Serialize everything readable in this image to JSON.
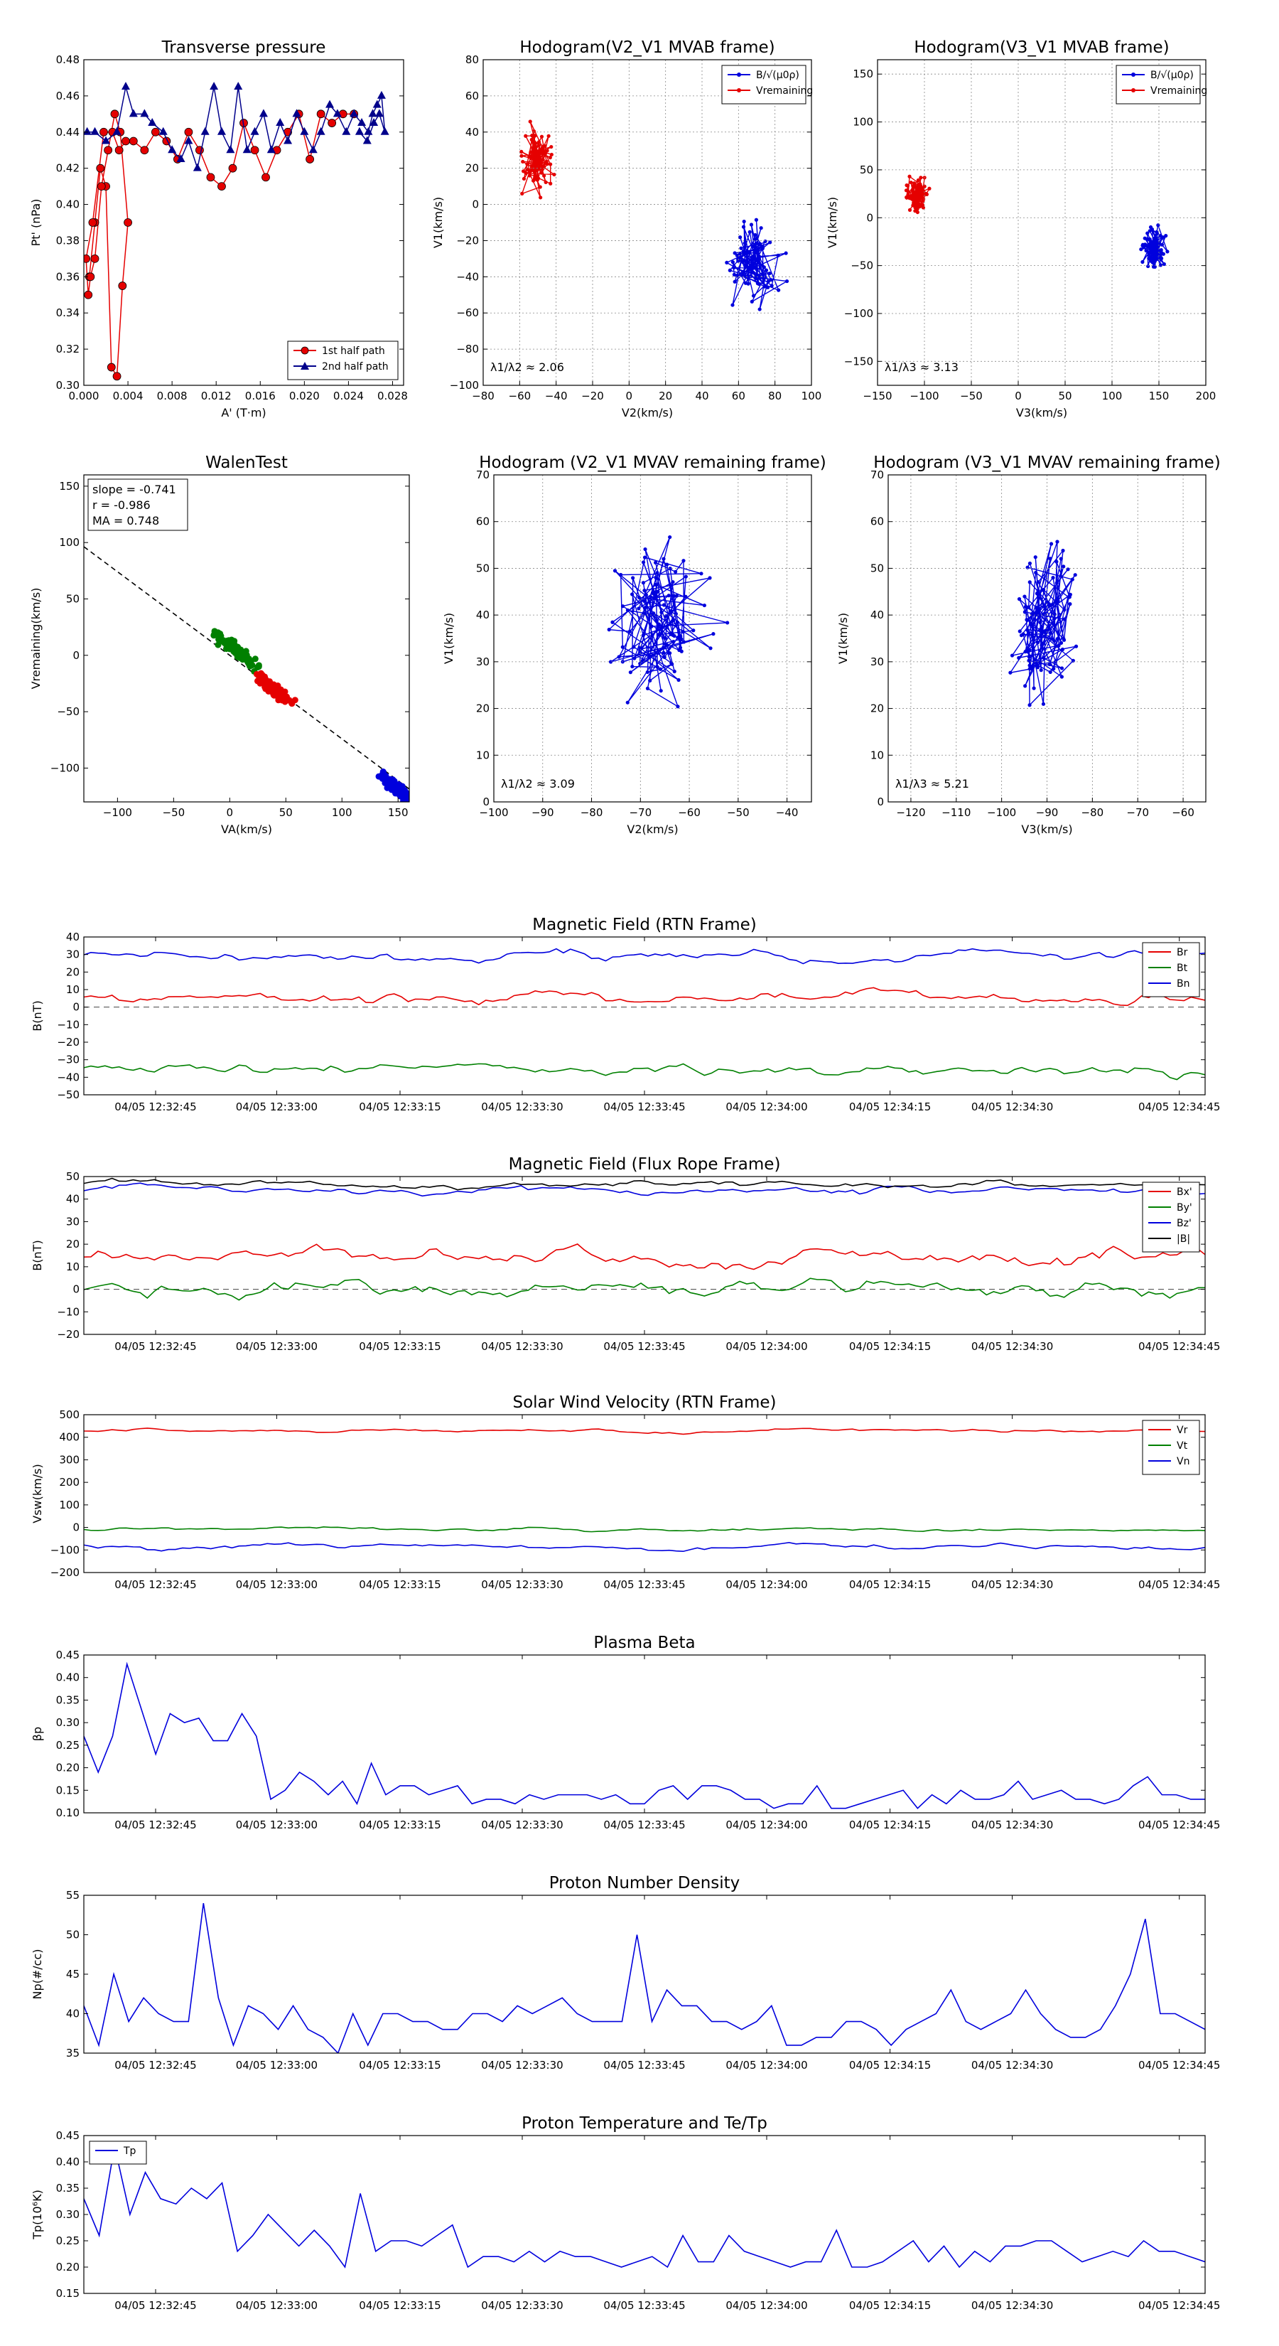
{
  "colors": {
    "red": "#e50000",
    "green": "#008000",
    "blue": "#0000dd",
    "black": "#000000",
    "navy": "#00008b",
    "grid": "#888888"
  },
  "chart_data": [
    {
      "id": "tp",
      "type": "scatter",
      "title": "Transverse pressure",
      "xlabel": "A' (T·m)",
      "ylabel": "Pt' (nPa)",
      "xlim": [
        0,
        0.029
      ],
      "ylim": [
        0.3,
        0.48
      ],
      "xticks": [
        "0.000",
        "0.004",
        "0.008",
        "0.012",
        "0.016",
        "0.020",
        "0.024",
        "0.028"
      ],
      "yticks": [
        "0.30",
        "0.32",
        "0.34",
        "0.36",
        "0.38",
        "0.40",
        "0.42",
        "0.44",
        "0.46",
        "0.48"
      ],
      "legend": [
        "1st half path",
        "2nd half path"
      ],
      "legend_loc": "lower-right",
      "series": [
        {
          "name": "1st half path",
          "x": [
            0.0005,
            0.001,
            0.0015,
            0.002,
            0.0025,
            0.003,
            0.0035,
            0.004,
            0.0033,
            0.0028,
            0.0022,
            0.0016,
            0.001,
            0.0006,
            0.0004,
            0.0002,
            0.0008,
            0.0018,
            0.0026,
            0.0032,
            0.0038,
            0.0045,
            0.0055,
            0.0065,
            0.0075,
            0.0085,
            0.0095,
            0.0105,
            0.0115,
            0.0125,
            0.0135,
            0.0145,
            0.0155,
            0.0165,
            0.0175,
            0.0185,
            0.0195,
            0.0205,
            0.0215,
            0.0225,
            0.0235,
            0.0245
          ],
          "y": [
            0.36,
            0.39,
            0.42,
            0.41,
            0.31,
            0.305,
            0.355,
            0.39,
            0.44,
            0.45,
            0.43,
            0.41,
            0.37,
            0.36,
            0.35,
            0.37,
            0.39,
            0.44,
            0.44,
            0.43,
            0.435,
            0.435,
            0.43,
            0.44,
            0.435,
            0.425,
            0.44,
            0.43,
            0.415,
            0.41,
            0.42,
            0.445,
            0.43,
            0.415,
            0.43,
            0.44,
            0.45,
            0.425,
            0.45,
            0.445,
            0.45,
            0.45
          ]
        },
        {
          "name": "2nd half path",
          "x": [
            0.0003,
            0.001,
            0.002,
            0.003,
            0.0038,
            0.0045,
            0.0055,
            0.0062,
            0.0072,
            0.008,
            0.0088,
            0.0095,
            0.0103,
            0.011,
            0.0118,
            0.0125,
            0.0133,
            0.014,
            0.0148,
            0.0155,
            0.0163,
            0.017,
            0.0178,
            0.0185,
            0.0193,
            0.02,
            0.0208,
            0.0215,
            0.0223,
            0.023,
            0.0238,
            0.0245,
            0.0252,
            0.0258,
            0.0262,
            0.0266,
            0.027,
            0.0273,
            0.0268,
            0.0263,
            0.0257,
            0.025
          ],
          "y": [
            0.44,
            0.44,
            0.435,
            0.44,
            0.465,
            0.45,
            0.45,
            0.445,
            0.44,
            0.43,
            0.425,
            0.435,
            0.42,
            0.44,
            0.465,
            0.44,
            0.43,
            0.465,
            0.43,
            0.44,
            0.45,
            0.43,
            0.445,
            0.435,
            0.45,
            0.44,
            0.43,
            0.44,
            0.455,
            0.45,
            0.44,
            0.45,
            0.445,
            0.44,
            0.45,
            0.455,
            0.46,
            0.44,
            0.45,
            0.445,
            0.435,
            0.44
          ]
        }
      ]
    },
    {
      "id": "h1",
      "type": "line",
      "title": "Hodogram(V2_V1 MVAB frame)",
      "xlabel": "V2(km/s)",
      "ylabel": "V1(km/s)",
      "xlim": [
        -80,
        100
      ],
      "ylim": [
        -100,
        80
      ],
      "xticks": [
        "−80",
        "−60",
        "−40",
        "−20",
        "0",
        "20",
        "40",
        "60",
        "80",
        "100"
      ],
      "yticks": [
        "−100",
        "−80",
        "−60",
        "−40",
        "−20",
        "0",
        "20",
        "40",
        "60",
        "80"
      ],
      "legend": [
        "B/√(μ0ρ)",
        "Vremaining"
      ],
      "legend_loc": "top-right",
      "annotation": "λ1/λ2 ≈ 2.06",
      "series": [
        {
          "name": "B/√(μ0ρ)",
          "cx": 68,
          "cy": -33,
          "sx": 10,
          "sy": 15,
          "n": 90,
          "seed": 11
        },
        {
          "name": "Vremaining",
          "cx": -50,
          "cy": 25,
          "sx": 6,
          "sy": 12,
          "n": 90,
          "seed": 23
        }
      ]
    },
    {
      "id": "h2",
      "type": "line",
      "title": "Hodogram(V3_V1 MVAB frame)",
      "xlabel": "V3(km/s)",
      "ylabel": "V1(km/s)",
      "xlim": [
        -150,
        200
      ],
      "ylim": [
        -175,
        165
      ],
      "xticks": [
        "−150",
        "−100",
        "−50",
        "0",
        "50",
        "100",
        "150",
        "200"
      ],
      "yticks": [
        "−150",
        "−100",
        "−50",
        "0",
        "50",
        "100",
        "150"
      ],
      "legend": [
        "B/√(μ0ρ)",
        "Vremaining"
      ],
      "legend_loc": "top-right",
      "annotation": "λ1/λ3 ≈ 3.13",
      "series": [
        {
          "name": "B/√(μ0ρ)",
          "cx": 145,
          "cy": -32,
          "sx": 9,
          "sy": 14,
          "n": 90,
          "seed": 37
        },
        {
          "name": "Vremaining",
          "cx": -108,
          "cy": 22,
          "sx": 7,
          "sy": 12,
          "n": 90,
          "seed": 41
        }
      ]
    },
    {
      "id": "walen",
      "type": "scatter",
      "title": "WalenTest",
      "xlabel": "VA(km/s)",
      "ylabel": "Vremaining(km/s)",
      "xlim": [
        -130,
        160
      ],
      "ylim": [
        -130,
        160
      ],
      "xticks": [
        "−100",
        "−50",
        "0",
        "50",
        "100",
        "150"
      ],
      "yticks": [
        "−100",
        "−50",
        "0",
        "50",
        "100",
        "150"
      ],
      "slope": -0.741,
      "intercept": 0,
      "stats": [
        "slope = -0.741",
        "r = -0.986",
        "MA = 0.748"
      ],
      "series": [
        {
          "name": "green",
          "cx": 5,
          "cy": 5,
          "sx": 14,
          "sy": 10,
          "n": 110,
          "seed": 5
        },
        {
          "name": "red",
          "cx": 40,
          "cy": -30,
          "sx": 10,
          "sy": 8,
          "n": 90,
          "seed": 7
        },
        {
          "name": "blue",
          "cx": 148,
          "cy": -117,
          "sx": 10,
          "sy": 6,
          "n": 110,
          "seed": 9
        }
      ]
    },
    {
      "id": "h3",
      "type": "line",
      "title": "Hodogram (V2_V1 MVAV remaining frame)",
      "xlabel": "V2(km/s)",
      "ylabel": "V1(km/s)",
      "xlim": [
        -100,
        -35
      ],
      "ylim": [
        0,
        70
      ],
      "xticks": [
        "−100",
        "−90",
        "−80",
        "−70",
        "−60",
        "−50",
        "−40"
      ],
      "yticks": [
        "0",
        "10",
        "20",
        "30",
        "40",
        "50",
        "60",
        "70"
      ],
      "annotation": "λ1/λ2 ≈ 3.09",
      "series": [
        {
          "name": "V",
          "cx": -66,
          "cy": 38,
          "sx": 7,
          "sy": 11,
          "n": 110,
          "seed": 61
        }
      ]
    },
    {
      "id": "h4",
      "type": "line",
      "title": "Hodogram (V3_V1 MVAV remaining frame)",
      "xlabel": "V3(km/s)",
      "ylabel": "V1(km/s)",
      "xlim": [
        -125,
        -55
      ],
      "ylim": [
        0,
        70
      ],
      "xticks": [
        "−120",
        "−110",
        "−100",
        "−90",
        "−80",
        "−70",
        "−60"
      ],
      "yticks": [
        "0",
        "10",
        "20",
        "30",
        "40",
        "50",
        "60",
        "70"
      ],
      "annotation": "λ1/λ3 ≈ 5.21",
      "series": [
        {
          "name": "V",
          "cx": -91,
          "cy": 38,
          "sx": 5,
          "sy": 11,
          "n": 110,
          "seed": 73
        }
      ]
    },
    {
      "id": "mag_rtn",
      "type": "line",
      "title": "Magnetic Field (RTN Frame)",
      "ylabel": "B(nT)",
      "ylim": [
        -50,
        40
      ],
      "yticks": [
        "−50",
        "−40",
        "−30",
        "−20",
        "−10",
        "0",
        "10",
        "20",
        "30",
        "40"
      ],
      "zero_line": true,
      "legend": [
        "Br",
        "Bt",
        "Bn"
      ],
      "legend_loc": "top-right",
      "series": [
        {
          "name": "Br",
          "base": 6,
          "amp": 3,
          "seed": 101
        },
        {
          "name": "Bt",
          "base": -36,
          "amp": 3,
          "seed": 102
        },
        {
          "name": "Bn",
          "base": 29,
          "amp": 2.5,
          "seed": 103
        }
      ]
    },
    {
      "id": "mag_fr",
      "type": "line",
      "title": "Magnetic Field (Flux Rope Frame)",
      "ylabel": "B(nT)",
      "ylim": [
        -20,
        50
      ],
      "yticks": [
        "−20",
        "−10",
        "0",
        "10",
        "20",
        "30",
        "40",
        "50"
      ],
      "zero_line": true,
      "legend": [
        "Bx'",
        "By'",
        "Bz'",
        "|B|"
      ],
      "legend_loc": "top-right",
      "series": [
        {
          "name": "Bx'",
          "base": 14,
          "amp": 3,
          "seed": 201
        },
        {
          "name": "By'",
          "base": 0,
          "amp": 3.5,
          "seed": 202
        },
        {
          "name": "Bz'",
          "base": 44,
          "amp": 1.5,
          "seed": 203
        },
        {
          "name": "|B|",
          "base": 46.5,
          "amp": 1.2,
          "seed": 204
        }
      ]
    },
    {
      "id": "vsw",
      "type": "line",
      "title": "Solar Wind Velocity (RTN Frame)",
      "ylabel": "Vsw(km/s)",
      "ylim": [
        -200,
        500
      ],
      "yticks": [
        "−200",
        "−100",
        "0",
        "100",
        "200",
        "300",
        "400",
        "500"
      ],
      "legend": [
        "Vr",
        "Vt",
        "Vn"
      ],
      "legend_loc": "top-right",
      "series": [
        {
          "name": "Vr",
          "base": 430,
          "amp": 6,
          "seed": 301
        },
        {
          "name": "Vt",
          "base": -10,
          "amp": 6,
          "seed": 302
        },
        {
          "name": "Vn",
          "base": -85,
          "amp": 10,
          "seed": 303
        }
      ]
    },
    {
      "id": "beta",
      "type": "line",
      "title": "Plasma Beta",
      "ylabel": "βp",
      "ylim": [
        0.1,
        0.45
      ],
      "yticks": [
        "0.10",
        "0.15",
        "0.20",
        "0.25",
        "0.30",
        "0.35",
        "0.40",
        "0.45"
      ],
      "series": [
        {
          "name": "beta",
          "values": [
            0.27,
            0.19,
            0.27,
            0.43,
            0.33,
            0.23,
            0.32,
            0.3,
            0.31,
            0.26,
            0.26,
            0.32,
            0.27,
            0.13,
            0.15,
            0.19,
            0.17,
            0.14,
            0.17,
            0.12,
            0.21,
            0.14,
            0.16,
            0.16,
            0.14,
            0.15,
            0.16,
            0.12,
            0.13,
            0.13,
            0.12,
            0.14,
            0.13,
            0.14,
            0.14,
            0.14,
            0.13,
            0.14,
            0.12,
            0.12,
            0.15,
            0.16,
            0.13,
            0.16,
            0.16,
            0.15,
            0.13,
            0.13,
            0.11,
            0.12,
            0.12,
            0.16,
            0.11,
            0.11,
            0.12,
            0.13,
            0.14,
            0.15,
            0.11,
            0.14,
            0.12,
            0.15,
            0.13,
            0.13,
            0.14,
            0.17,
            0.13,
            0.14,
            0.15,
            0.13,
            0.13,
            0.12,
            0.13,
            0.16,
            0.18,
            0.14,
            0.14,
            0.13,
            0.13
          ]
        }
      ]
    },
    {
      "id": "np",
      "type": "line",
      "title": "Proton Number Density",
      "ylabel": "Np(#/cc)",
      "ylim": [
        35,
        55
      ],
      "yticks": [
        "35",
        "40",
        "45",
        "50",
        "55"
      ],
      "series": [
        {
          "name": "Np",
          "values": [
            41,
            36,
            45,
            39,
            42,
            40,
            39,
            39,
            54,
            42,
            36,
            41,
            40,
            38,
            41,
            38,
            37,
            35,
            40,
            36,
            40,
            40,
            39,
            39,
            38,
            38,
            40,
            40,
            39,
            41,
            40,
            41,
            42,
            40,
            39,
            39,
            39,
            50,
            39,
            43,
            41,
            41,
            39,
            39,
            38,
            39,
            41,
            36,
            36,
            37,
            37,
            39,
            39,
            38,
            36,
            38,
            39,
            40,
            43,
            39,
            38,
            39,
            40,
            43,
            40,
            38,
            37,
            37,
            38,
            41,
            45,
            52,
            40,
            40,
            39,
            38
          ]
        }
      ]
    },
    {
      "id": "tp2",
      "type": "line",
      "title": "Proton Temperature and Te/Tp",
      "ylabel": "Tp(10⁶K)",
      "ylim": [
        0.15,
        0.45
      ],
      "yticks": [
        "0.15",
        "0.20",
        "0.25",
        "0.30",
        "0.35",
        "0.40",
        "0.45"
      ],
      "legend": [
        "Tp"
      ],
      "legend_loc": "top-left",
      "series": [
        {
          "name": "Tp",
          "values": [
            0.33,
            0.26,
            0.43,
            0.3,
            0.38,
            0.33,
            0.32,
            0.35,
            0.33,
            0.36,
            0.23,
            0.26,
            0.3,
            0.27,
            0.24,
            0.27,
            0.24,
            0.2,
            0.34,
            0.23,
            0.25,
            0.25,
            0.24,
            0.26,
            0.28,
            0.2,
            0.22,
            0.22,
            0.21,
            0.23,
            0.21,
            0.23,
            0.22,
            0.22,
            0.21,
            0.2,
            0.21,
            0.22,
            0.2,
            0.26,
            0.21,
            0.21,
            0.26,
            0.23,
            0.22,
            0.21,
            0.2,
            0.21,
            0.21,
            0.27,
            0.2,
            0.2,
            0.21,
            0.23,
            0.25,
            0.21,
            0.24,
            0.2,
            0.23,
            0.21,
            0.24,
            0.24,
            0.25,
            0.25,
            0.23,
            0.21,
            0.22,
            0.23,
            0.22,
            0.25,
            0.23,
            0.23,
            0.22,
            0.21
          ]
        }
      ]
    }
  ],
  "time_ticks": [
    "04/05 12:32:45",
    "04/05 12:33:00",
    "04/05 12:33:15",
    "04/05 12:33:30",
    "04/05 12:33:45",
    "04/05 12:34:00",
    "04/05 12:34:15",
    "04/05 12:34:30",
    "04/05 12:34:45"
  ]
}
